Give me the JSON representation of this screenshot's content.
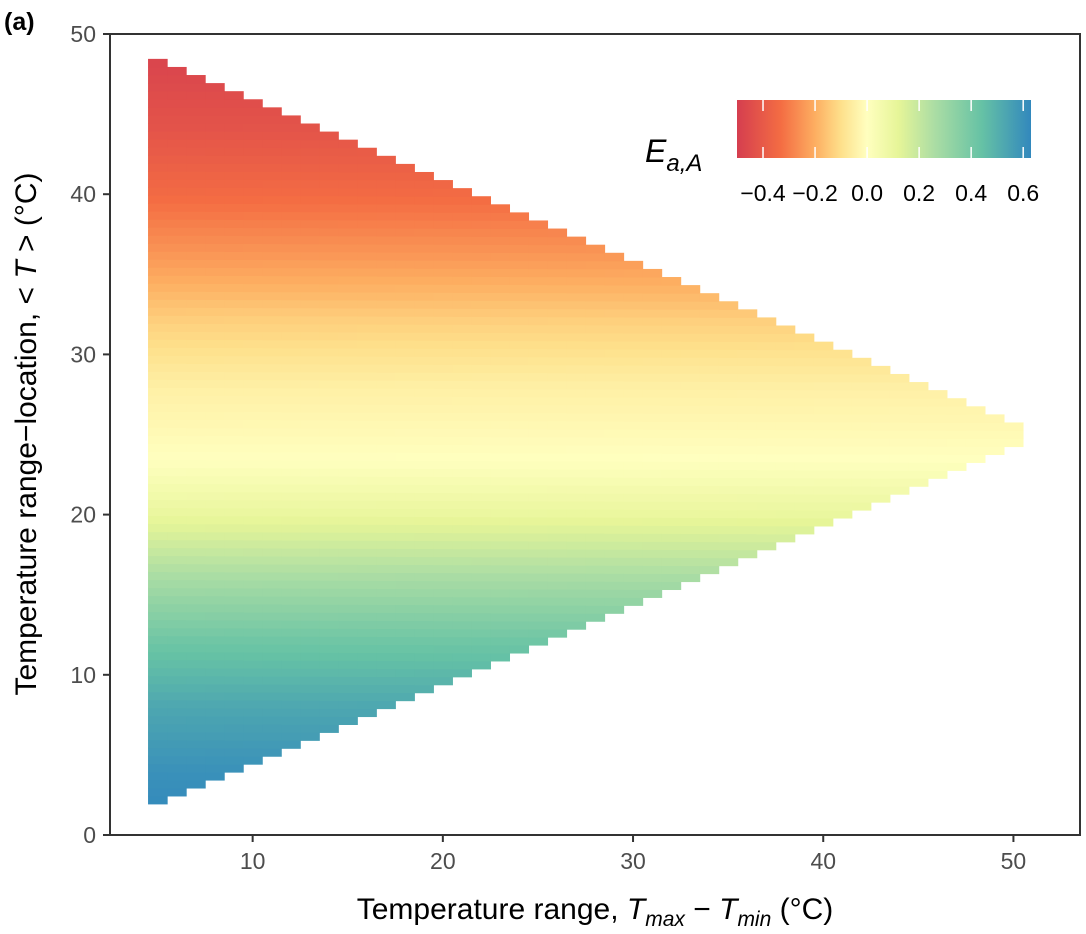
{
  "panel_label": "(a)",
  "chart_data": {
    "type": "heatmap",
    "xlabel_parts": {
      "prefix": "Temperature range, ",
      "t1": "T",
      "sub1": "max",
      "minus": " − ",
      "t2": "T",
      "sub2": "min",
      "suffix": " (°C)"
    },
    "ylabel_parts": {
      "prefix": "Temperature range−location, < ",
      "t": "T",
      "suffix": " > (°C)"
    },
    "xlim": [
      2.5,
      53.5
    ],
    "ylim": [
      0,
      50
    ],
    "x_ticks": [
      10,
      20,
      30,
      40,
      50
    ],
    "x_tick_labels": [
      "10",
      "20",
      "30",
      "40",
      "50"
    ],
    "y_ticks": [
      0,
      10,
      20,
      30,
      40,
      50
    ],
    "y_tick_labels": [
      "0",
      "10",
      "20",
      "30",
      "40",
      "50"
    ],
    "grid": false,
    "domain": {
      "x_min": 4.5,
      "x_max": 50.5,
      "center_y": 25,
      "left_y_top": 47.8,
      "left_y_bottom": 2.2,
      "cell_width": 1,
      "cell_height": 0.5
    },
    "value_model": "E(y) depends on <T> only: -0.47 at <T>=48, ~0 at <T>=23.5, 0.62 at <T>=2",
    "color_stops": [
      {
        "T": 48.0,
        "value": -0.47
      },
      {
        "T": 44.0,
        "value": -0.42
      },
      {
        "T": 40.0,
        "value": -0.34
      },
      {
        "T": 36.0,
        "value": -0.24
      },
      {
        "T": 32.0,
        "value": -0.13
      },
      {
        "T": 28.0,
        "value": -0.05
      },
      {
        "T": 23.5,
        "value": 0.0
      },
      {
        "T": 20.0,
        "value": 0.1
      },
      {
        "T": 16.0,
        "value": 0.27
      },
      {
        "T": 12.0,
        "value": 0.42
      },
      {
        "T": 8.0,
        "value": 0.53
      },
      {
        "T": 4.0,
        "value": 0.6
      },
      {
        "T": 2.0,
        "value": 0.62
      }
    ],
    "legend": {
      "title_main": "E",
      "title_sub": "a,A",
      "placement": "top-right",
      "range": [
        -0.5,
        0.63
      ],
      "ticks": [
        -0.4,
        -0.2,
        0.0,
        0.2,
        0.4,
        0.6
      ],
      "tick_labels": [
        "−0.4",
        "−0.2",
        "0.0",
        "0.2",
        "0.4",
        "0.6"
      ],
      "colormap": [
        {
          "value": -0.5,
          "color": "#d53e4f"
        },
        {
          "value": -0.33,
          "color": "#f46d43"
        },
        {
          "value": -0.2,
          "color": "#fdae61"
        },
        {
          "value": -0.1,
          "color": "#fee08b"
        },
        {
          "value": 0.0,
          "color": "#ffffbf"
        },
        {
          "value": 0.12,
          "color": "#e6f598"
        },
        {
          "value": 0.26,
          "color": "#abdda4"
        },
        {
          "value": 0.44,
          "color": "#66c2a5"
        },
        {
          "value": 0.63,
          "color": "#3288bd"
        }
      ]
    }
  },
  "colors": {
    "axis": "#333333",
    "tick_text": "#4d4d4d",
    "background": "#ffffff"
  }
}
